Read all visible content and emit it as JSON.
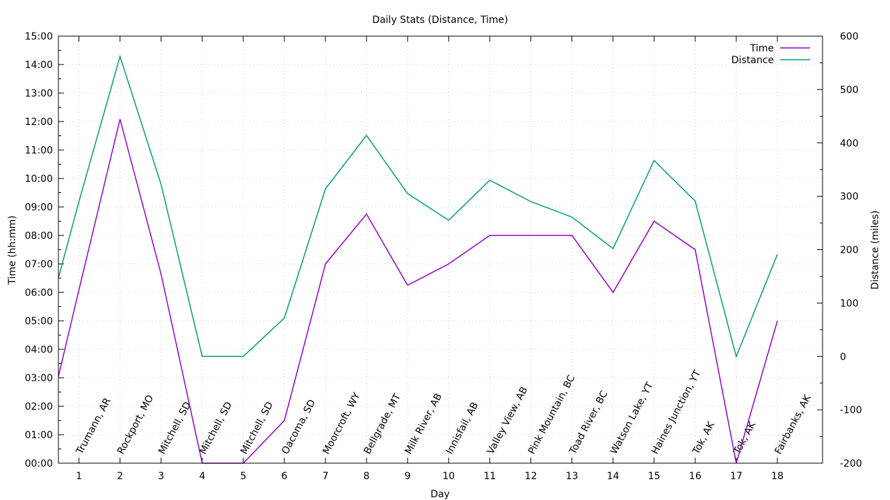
{
  "chart_data": {
    "type": "line",
    "title": "Daily Stats (Distance, Time)",
    "xlabel": "Day",
    "ylabel": "Time (hh:mm)",
    "y2label": "Distance (miles)",
    "xlim": [
      0.5,
      19.1
    ],
    "ylim_minutes": [
      0,
      900
    ],
    "y2lim": [
      -200,
      600
    ],
    "grid": true,
    "legend_position": "top-right",
    "x_ticks": [
      1,
      2,
      3,
      4,
      5,
      6,
      7,
      8,
      9,
      10,
      11,
      12,
      13,
      14,
      15,
      16,
      17,
      18
    ],
    "y_tick_labels": [
      "00:00",
      "01:00",
      "02:00",
      "03:00",
      "04:00",
      "05:00",
      "06:00",
      "07:00",
      "08:00",
      "09:00",
      "10:00",
      "11:00",
      "12:00",
      "13:00",
      "14:00",
      "15:00"
    ],
    "y2_ticks": [
      -200,
      -100,
      0,
      100,
      200,
      300,
      400,
      500,
      600
    ],
    "x": [
      0.5,
      1,
      2,
      3,
      4,
      5,
      6,
      7,
      8,
      9,
      10,
      11,
      12,
      13,
      14,
      15,
      16,
      17,
      18
    ],
    "stop_labels": [
      "Trumann, AR",
      "Rockport, MO",
      "Mitchell, SD",
      "Mitchell, SD",
      "Mitchell, SD",
      "Oacoma, SD",
      "Moorcroft, WY",
      "Bellgrade, MT",
      "Milk River, AB",
      "Innisfail, AB",
      "Valley View, AB",
      "Pink Mountain, BC",
      "Toad River, BC",
      "Watson Lake, YT",
      "Haines Junction, YT",
      "Tok, AK",
      "Tok, AK",
      "Fairbanks, AK"
    ],
    "series": [
      {
        "name": "Time",
        "axis": "y",
        "color": "#9400d3",
        "values_minutes": [
          183,
          365,
          725,
          398,
          0,
          0,
          90,
          420,
          525,
          375,
          420,
          480,
          480,
          480,
          360,
          510,
          450,
          0,
          300
        ]
      },
      {
        "name": "Distance",
        "axis": "y2",
        "color": "#009e73",
        "values": [
          147,
          290,
          562,
          322,
          0,
          0,
          72,
          314,
          414,
          305,
          255,
          330,
          290,
          261,
          202,
          367,
          291,
          0,
          191
        ]
      }
    ]
  }
}
